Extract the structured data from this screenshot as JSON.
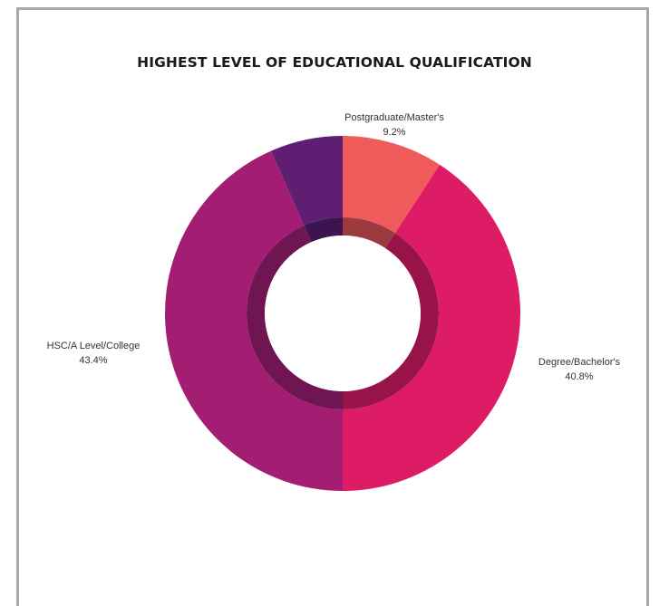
{
  "chart_data": {
    "type": "pie",
    "title": "HIGHEST LEVEL OF EDUCATIONAL QUALIFICATION",
    "donut": true,
    "slices": [
      {
        "label": "Postgraduate/Master's",
        "value": 9.2,
        "value_label": "9.2%",
        "color": "#ef5b5b",
        "inner_color": "#9b3a3f"
      },
      {
        "label": "Degree/Bachelor's",
        "value": 40.8,
        "value_label": "40.8%",
        "color": "#de1b65",
        "inner_color": "#981448"
      },
      {
        "label": "HSC/A Level/College",
        "value": 43.4,
        "value_label": "43.4%",
        "color": "#a31d72",
        "inner_color": "#6f1652"
      },
      {
        "label": "",
        "value": 6.6,
        "value_label": "",
        "color": "#5e1f73",
        "inner_color": "#3e1450"
      }
    ]
  }
}
